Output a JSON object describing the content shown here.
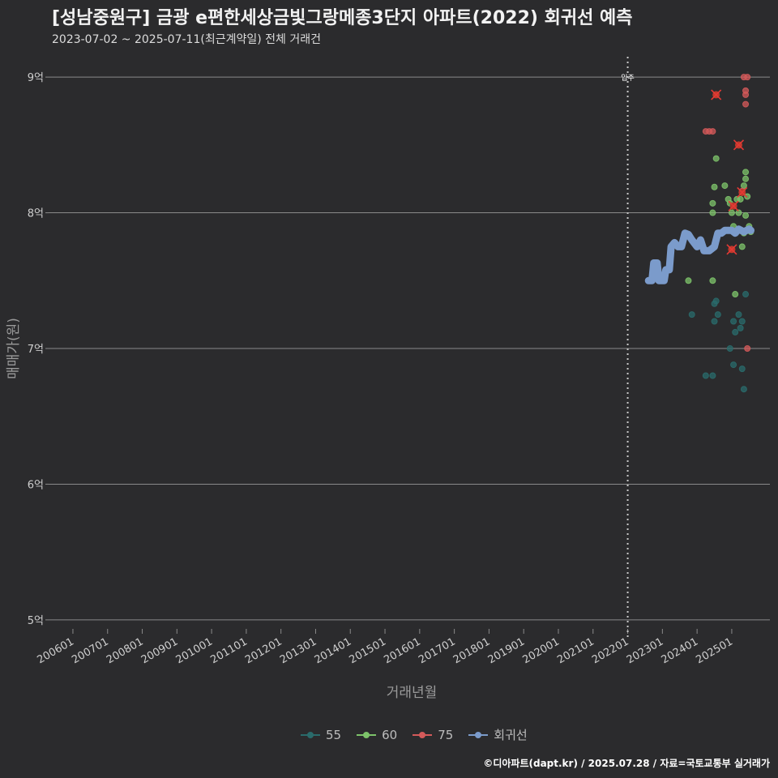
{
  "title": "[성남중원구] 금광 e편한세상금빛그랑메종3단지 아파트(2022) 회귀선 예측",
  "subtitle": "2023-07-02 ~ 2025-07-11(최근계약일) 전체 거래건",
  "caption": "©디아파트(dapt.kr) / 2025.07.28 / 자료=국토교통부 실거래가",
  "colors": {
    "s55": "#2a6b6b",
    "s60": "#7dc36a",
    "s75": "#d45a5a",
    "reg": "#7b9bcb"
  },
  "chart_data": {
    "type": "scatter",
    "xlabel": "거래년월",
    "ylabel": "매매가(원)",
    "xlim": [
      2005.3,
      2026.1
    ],
    "ylim": [
      4.85,
      9.15
    ],
    "x_ticks": [
      {
        "x": 2006,
        "label": "200601"
      },
      {
        "x": 2007,
        "label": "200701"
      },
      {
        "x": 2008,
        "label": "200801"
      },
      {
        "x": 2009,
        "label": "200901"
      },
      {
        "x": 2010,
        "label": "201001"
      },
      {
        "x": 2011,
        "label": "201101"
      },
      {
        "x": 2012,
        "label": "201201"
      },
      {
        "x": 2013,
        "label": "201301"
      },
      {
        "x": 2014,
        "label": "201401"
      },
      {
        "x": 2015,
        "label": "201501"
      },
      {
        "x": 2016,
        "label": "201601"
      },
      {
        "x": 2017,
        "label": "201701"
      },
      {
        "x": 2018,
        "label": "201801"
      },
      {
        "x": 2019,
        "label": "201901"
      },
      {
        "x": 2020,
        "label": "202001"
      },
      {
        "x": 2021,
        "label": "202101"
      },
      {
        "x": 2022,
        "label": "202201"
      },
      {
        "x": 2023,
        "label": "202301"
      },
      {
        "x": 2024,
        "label": "202401"
      },
      {
        "x": 2025,
        "label": "202501"
      }
    ],
    "y_ticks": [
      {
        "y": 5,
        "label": "5억"
      },
      {
        "y": 6,
        "label": "6억"
      },
      {
        "y": 7,
        "label": "7억"
      },
      {
        "y": 8,
        "label": "8억"
      },
      {
        "y": 9,
        "label": "9억"
      }
    ],
    "move_in": {
      "x": 2022.0,
      "label": "입주"
    },
    "series": [
      {
        "name": "55",
        "color_key": "s55",
        "points": [
          [
            2023.85,
            7.25
          ],
          [
            2024.25,
            6.8
          ],
          [
            2024.45,
            6.8
          ],
          [
            2024.5,
            7.33
          ],
          [
            2024.5,
            7.2
          ],
          [
            2024.55,
            7.35
          ],
          [
            2024.6,
            7.25
          ],
          [
            2024.95,
            7.0
          ],
          [
            2025.05,
            6.88
          ],
          [
            2025.05,
            7.2
          ],
          [
            2025.1,
            7.12
          ],
          [
            2025.2,
            7.25
          ],
          [
            2025.25,
            7.15
          ],
          [
            2025.3,
            7.2
          ],
          [
            2025.3,
            6.85
          ],
          [
            2025.35,
            6.7
          ],
          [
            2025.4,
            7.4
          ]
        ]
      },
      {
        "name": "60",
        "color_key": "s60",
        "points": [
          [
            2023.75,
            7.5
          ],
          [
            2024.45,
            7.5
          ],
          [
            2024.45,
            8.0
          ],
          [
            2024.45,
            8.07
          ],
          [
            2024.5,
            8.19
          ],
          [
            2024.55,
            8.4
          ],
          [
            2024.8,
            8.2
          ],
          [
            2024.9,
            8.1
          ],
          [
            2024.95,
            8.07
          ],
          [
            2025.0,
            8.0
          ],
          [
            2025.05,
            8.05
          ],
          [
            2025.05,
            7.9
          ],
          [
            2025.1,
            7.4
          ],
          [
            2025.15,
            8.1
          ],
          [
            2025.2,
            8.0
          ],
          [
            2025.25,
            8.1
          ],
          [
            2025.3,
            7.75
          ],
          [
            2025.35,
            7.85
          ],
          [
            2025.35,
            8.2
          ],
          [
            2025.4,
            8.25
          ],
          [
            2025.4,
            8.3
          ],
          [
            2025.4,
            7.98
          ],
          [
            2025.45,
            8.12
          ],
          [
            2025.5,
            7.9
          ],
          [
            2025.55,
            7.86
          ]
        ]
      },
      {
        "name": "75",
        "color_key": "s75",
        "points": [
          [
            2024.25,
            8.6
          ],
          [
            2024.35,
            8.6
          ],
          [
            2024.45,
            8.6
          ],
          [
            2024.55,
            8.87
          ],
          [
            2025.0,
            7.73
          ],
          [
            2025.05,
            8.05
          ],
          [
            2025.2,
            8.5
          ],
          [
            2025.3,
            8.15
          ],
          [
            2025.35,
            9.0
          ],
          [
            2025.4,
            8.9
          ],
          [
            2025.4,
            8.8
          ],
          [
            2025.4,
            8.87
          ],
          [
            2025.45,
            9.0
          ],
          [
            2025.45,
            7.0
          ],
          [
            2025.3,
            8.16
          ]
        ]
      }
    ],
    "highlighted": [
      [
        2024.55,
        8.87
      ],
      [
        2025.2,
        8.5
      ],
      [
        2025.3,
        8.15
      ],
      [
        2025.05,
        8.05
      ],
      [
        2025.0,
        7.73
      ]
    ],
    "regression": {
      "name": "회귀선",
      "color_key": "reg",
      "points": [
        [
          2022.6,
          7.5
        ],
        [
          2022.7,
          7.5
        ],
        [
          2022.75,
          7.63
        ],
        [
          2022.85,
          7.63
        ],
        [
          2022.9,
          7.5
        ],
        [
          2023.05,
          7.5
        ],
        [
          2023.1,
          7.58
        ],
        [
          2023.2,
          7.58
        ],
        [
          2023.25,
          7.75
        ],
        [
          2023.35,
          7.78
        ],
        [
          2023.45,
          7.75
        ],
        [
          2023.55,
          7.75
        ],
        [
          2023.65,
          7.85
        ],
        [
          2023.75,
          7.84
        ],
        [
          2023.85,
          7.8
        ],
        [
          2024.0,
          7.75
        ],
        [
          2024.1,
          7.8
        ],
        [
          2024.2,
          7.72
        ],
        [
          2024.35,
          7.72
        ],
        [
          2024.5,
          7.75
        ],
        [
          2024.6,
          7.85
        ],
        [
          2024.7,
          7.85
        ],
        [
          2024.8,
          7.87
        ],
        [
          2025.0,
          7.87
        ],
        [
          2025.1,
          7.85
        ],
        [
          2025.2,
          7.88
        ],
        [
          2025.35,
          7.86
        ],
        [
          2025.5,
          7.88
        ],
        [
          2025.55,
          7.87
        ]
      ]
    }
  },
  "legend": [
    {
      "label": "55",
      "color_key": "s55"
    },
    {
      "label": "60",
      "color_key": "s60"
    },
    {
      "label": "75",
      "color_key": "s75"
    },
    {
      "label": "회귀선",
      "color_key": "reg"
    }
  ]
}
